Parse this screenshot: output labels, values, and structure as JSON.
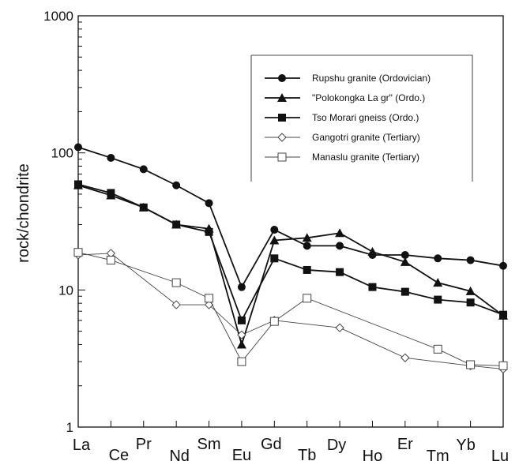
{
  "chart_data": {
    "type": "line",
    "title": "",
    "xlabel": "",
    "ylabel": "rock/chondrite",
    "yscale": "log",
    "ylim": [
      1,
      1000
    ],
    "yticks": [
      "1000",
      "100",
      "10",
      "1"
    ],
    "grid": false,
    "legend_position": "upper-right",
    "categories": [
      "La",
      "Ce",
      "Pr",
      "Nd",
      "Sm",
      "Eu",
      "Gd",
      "Tb",
      "Dy",
      "Ho",
      "Er",
      "Tm",
      "Yb",
      "Lu"
    ],
    "series": [
      {
        "name": "Rupshu granite (Ordovician)",
        "marker": "filled-circle",
        "color": "#111111",
        "points": [
          {
            "x": "La",
            "y": 110
          },
          {
            "x": "Ce",
            "y": 92
          },
          {
            "x": "Pr",
            "y": 76
          },
          {
            "x": "Nd",
            "y": 58
          },
          {
            "x": "Sm",
            "y": 43
          },
          {
            "x": "Eu",
            "y": 10.5
          },
          {
            "x": "Gd",
            "y": 27.5
          },
          {
            "x": "Tb",
            "y": 21
          },
          {
            "x": "Dy",
            "y": 21
          },
          {
            "x": "Ho",
            "y": 18
          },
          {
            "x": "Er",
            "y": 18
          },
          {
            "x": "Tm",
            "y": 17
          },
          {
            "x": "Yb",
            "y": 16.5
          },
          {
            "x": "Lu",
            "y": 15
          }
        ]
      },
      {
        "name": "\"Polokongka La gr\" (Ordo.)",
        "marker": "filled-triangle",
        "color": "#111111",
        "points": [
          {
            "x": "La",
            "y": 58
          },
          {
            "x": "Ce",
            "y": 49
          },
          {
            "x": "Pr",
            "y": 40
          },
          {
            "x": "Nd",
            "y": 30
          },
          {
            "x": "Sm",
            "y": 28
          },
          {
            "x": "Eu",
            "y": 4
          },
          {
            "x": "Gd",
            "y": 23
          },
          {
            "x": "Tb",
            "y": 24
          },
          {
            "x": "Dy",
            "y": 26
          },
          {
            "x": "Ho",
            "y": 19
          },
          {
            "x": "Er",
            "y": 16
          },
          {
            "x": "Tm",
            "y": 11.3
          },
          {
            "x": "Yb",
            "y": 9.8
          },
          {
            "x": "Lu",
            "y": 6.5
          }
        ]
      },
      {
        "name": "Tso Morari gneiss (Ordo.)",
        "marker": "filled-square",
        "color": "#111111",
        "points": [
          {
            "x": "La",
            "y": 59
          },
          {
            "x": "Ce",
            "y": 51
          },
          {
            "x": "Pr",
            "y": 40
          },
          {
            "x": "Nd",
            "y": 30
          },
          {
            "x": "Sm",
            "y": 26.5
          },
          {
            "x": "Eu",
            "y": 6
          },
          {
            "x": "Gd",
            "y": 17
          },
          {
            "x": "Tb",
            "y": 14
          },
          {
            "x": "Dy",
            "y": 13.5
          },
          {
            "x": "Ho",
            "y": 10.5
          },
          {
            "x": "Er",
            "y": 9.7
          },
          {
            "x": "Tm",
            "y": 8.5
          },
          {
            "x": "Yb",
            "y": 8.1
          },
          {
            "x": "Lu",
            "y": 6.6
          }
        ]
      },
      {
        "name": "Gangotri granite (Tertiary)",
        "marker": "open-diamond",
        "color": "#444444",
        "points": [
          {
            "x": "La",
            "y": 18
          },
          {
            "x": "Ce",
            "y": 18.5
          },
          {
            "x": "Nd",
            "y": 7.8
          },
          {
            "x": "Sm",
            "y": 7.8
          },
          {
            "x": "Eu",
            "y": 4.7
          },
          {
            "x": "Gd",
            "y": 6
          },
          {
            "x": "Dy",
            "y": 5.3
          },
          {
            "x": "Er",
            "y": 3.2
          },
          {
            "x": "Yb",
            "y": 2.8
          },
          {
            "x": "Lu",
            "y": 2.65
          }
        ]
      },
      {
        "name": "Manaslu granite (Tertiary)",
        "marker": "open-square",
        "color": "#444444",
        "points": [
          {
            "x": "La",
            "y": 18.8
          },
          {
            "x": "Ce",
            "y": 16.5
          },
          {
            "x": "Nd",
            "y": 11.3
          },
          {
            "x": "Sm",
            "y": 8.7
          },
          {
            "x": "Eu",
            "y": 3
          },
          {
            "x": "Gd",
            "y": 5.9
          },
          {
            "x": "Tb",
            "y": 8.7
          },
          {
            "x": "Tm",
            "y": 3.7
          },
          {
            "x": "Yb",
            "y": 2.85
          },
          {
            "x": "Lu",
            "y": 2.8
          }
        ]
      }
    ]
  }
}
